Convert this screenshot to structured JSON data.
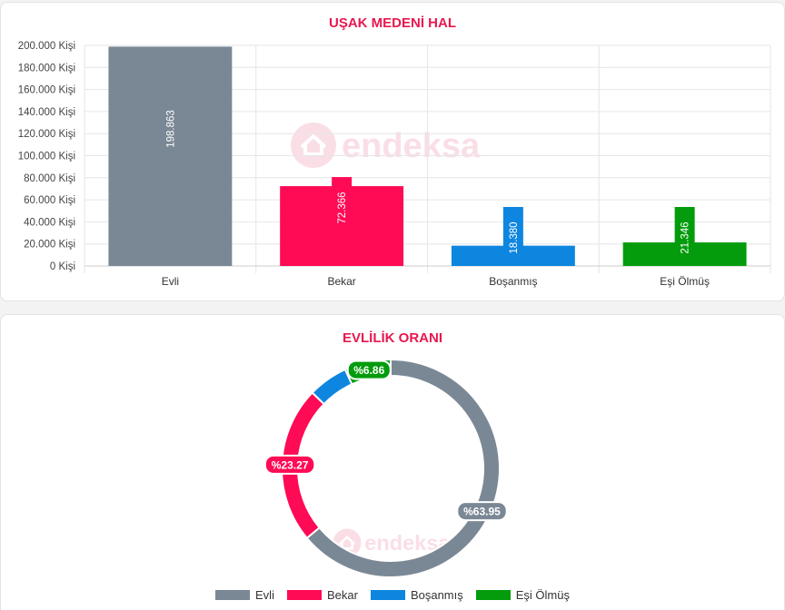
{
  "colors": {
    "title": "#e8184f",
    "Evli": "#7a8896",
    "Bekar": "#ff0a55",
    "Bosanmis": "#0e86e0",
    "EsiOlmus": "#049c0c",
    "watermark": "#f7c4d2"
  },
  "watermark_text": "endeksa",
  "chart_data": [
    {
      "type": "bar",
      "title": "UŞAK MEDENİ HAL",
      "categories": [
        "Evli",
        "Bekar",
        "Boşanmış",
        "Eşi Ölmüş"
      ],
      "values": [
        198863,
        72366,
        18380,
        21346
      ],
      "value_labels": [
        "198.863",
        "72.366",
        "18.380",
        "21.346"
      ],
      "series_colors": [
        "#7a8896",
        "#ff0a55",
        "#0e86e0",
        "#049c0c"
      ],
      "ylim": [
        0,
        200000
      ],
      "yticks": [
        0,
        20000,
        40000,
        60000,
        80000,
        100000,
        120000,
        140000,
        160000,
        180000,
        200000
      ],
      "ytick_labels": [
        "0 Kişi",
        "20.000 Kişi",
        "40.000 Kişi",
        "60.000 Kişi",
        "80.000 Kişi",
        "100.000 Kişi",
        "120.000 Kişi",
        "140.000 Kişi",
        "160.000 Kişi",
        "180.000 Kişi",
        "200.000 Kişi"
      ],
      "grid": true
    },
    {
      "type": "pie",
      "title": "EVLİLİK ORANI",
      "labels": [
        "Evli",
        "Bekar",
        "Boşanmış",
        "Eşi Ölmüş"
      ],
      "values": [
        63.95,
        23.27,
        5.91,
        6.86
      ],
      "data_labels": [
        "%63.95",
        "%23.27",
        "",
        "%6.86"
      ],
      "series_colors": [
        "#7a8896",
        "#ff0a55",
        "#0e86e0",
        "#049c0c"
      ],
      "legend": "bottom"
    }
  ]
}
